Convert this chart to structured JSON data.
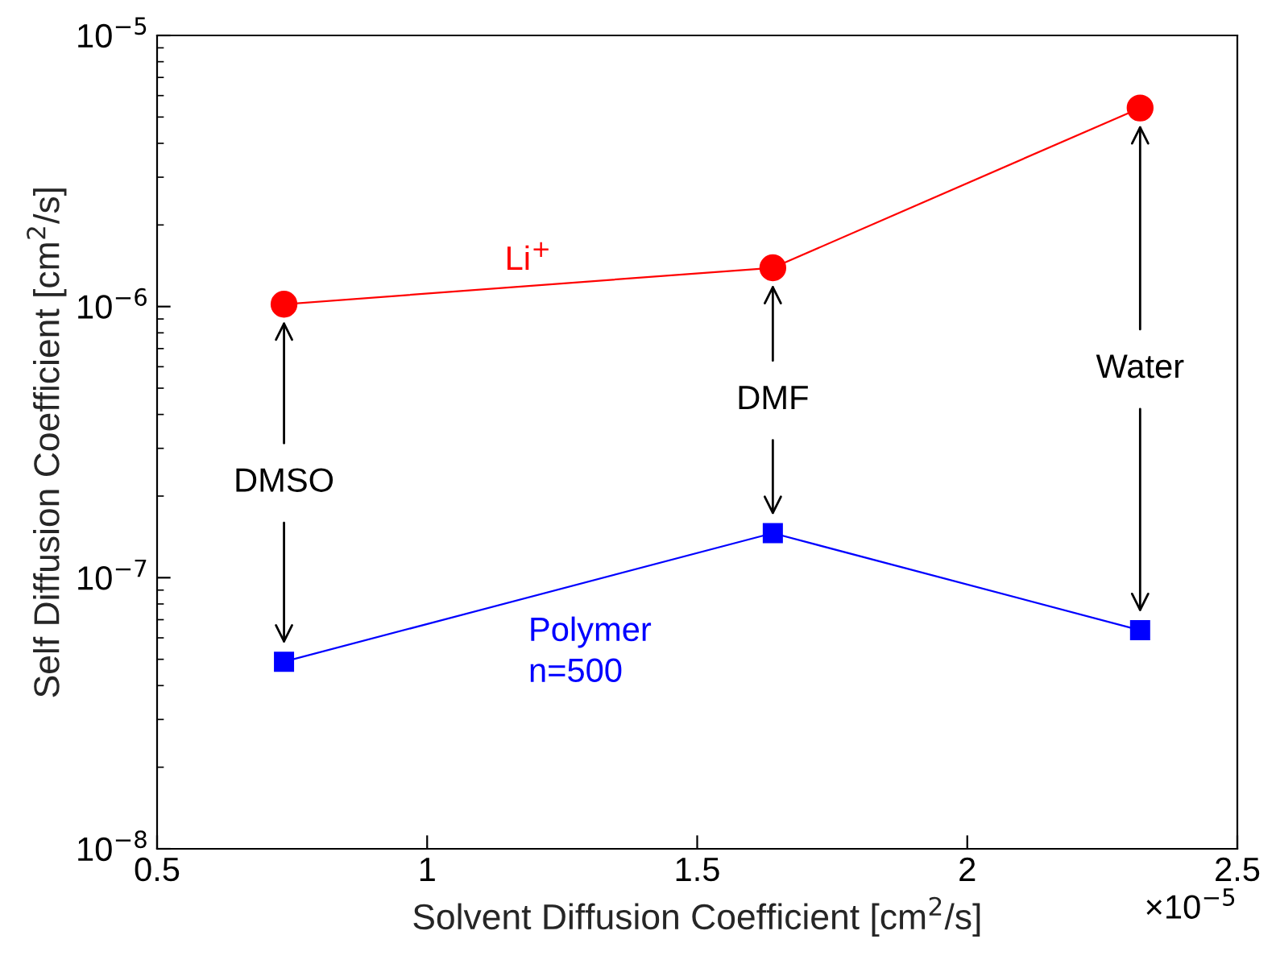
{
  "chart_data": {
    "type": "line",
    "xlabel": "Solvent Diffusion Coefficient [cm$^{2}$/s]",
    "ylabel": "Self Diffusion Coefficient [cm$^{2}$/s]",
    "x": [
      0.735,
      1.64,
      2.32
    ],
    "series": [
      {
        "name": "Li$^{+}$",
        "color": "#ff0000",
        "marker": "circle",
        "values": [
          1.02e-06,
          1.39e-06,
          5.4e-06
        ]
      },
      {
        "name": "Polymer\nn=500",
        "color": "#0000ff",
        "marker": "square",
        "values": [
          4.9e-08,
          1.46e-07,
          6.4e-08
        ]
      }
    ],
    "annotations": [
      "DMSO",
      "DMF",
      "Water",
      "×10$^{−5}$"
    ],
    "log": "y",
    "grid": false,
    "legend": false,
    "xlim": [
      0.5,
      2.5
    ],
    "xticks": [
      0.5,
      1,
      1.5,
      2,
      2.5
    ],
    "ylim": [
      1e-08,
      1e-05
    ],
    "yticks": [
      {
        "value": 1e-08,
        "label": "10$^{−8}$"
      },
      {
        "value": 1e-07,
        "label": "10$^{−7}$"
      },
      {
        "value": 1e-06,
        "label": "10$^{−6}$"
      },
      {
        "value": 1e-05,
        "label": "10$^{−5}$"
      }
    ]
  }
}
